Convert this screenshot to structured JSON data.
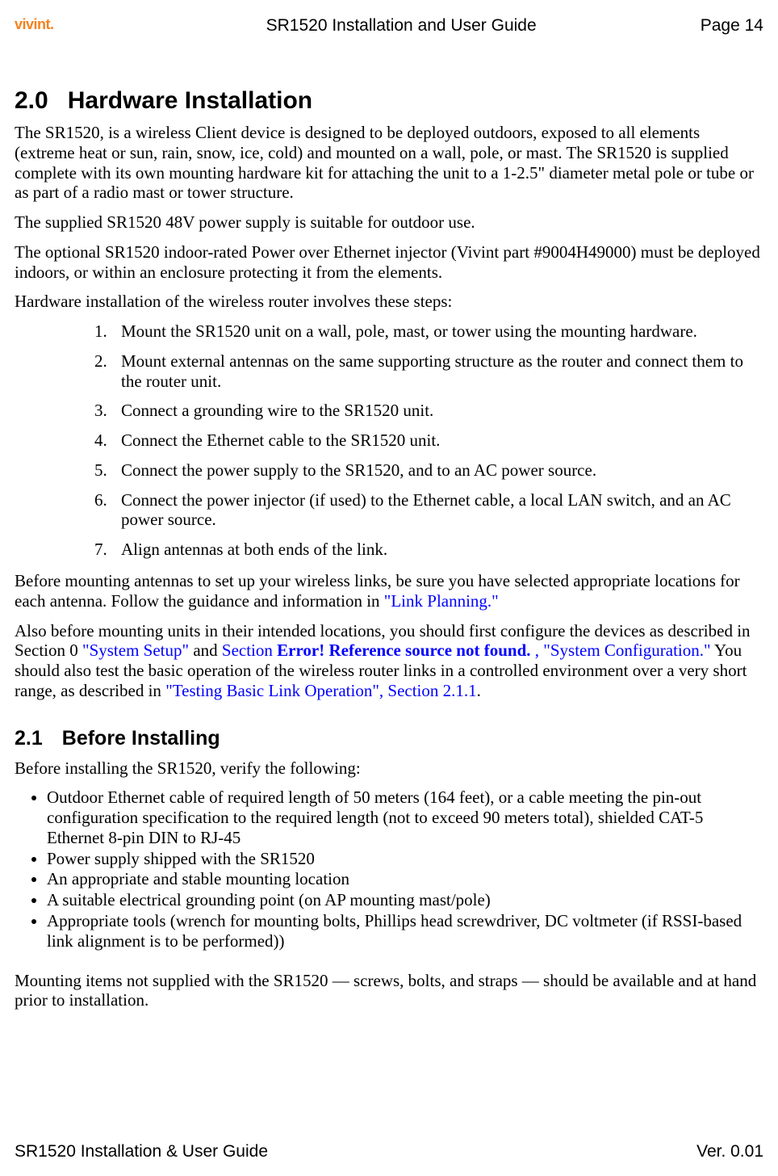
{
  "header": {
    "logo_text": "vivint",
    "logo_dot": ".",
    "doc_title": "SR1520 Installation and User Guide",
    "page_label": "Page 14"
  },
  "section": {
    "number": "2.0",
    "title": "Hardware Installation"
  },
  "intro_paras": [
    "The SR1520, is a wireless Client device is designed to be deployed outdoors, exposed to all elements (extreme heat or sun, rain, snow, ice, cold) and mounted on a wall, pole, or mast. The SR1520 is supplied complete with its own mounting hardware kit for attaching the unit to a 1-2.5\" diameter metal pole or tube or as part of a radio mast or tower structure.",
    "The supplied SR1520 48V power supply is suitable for outdoor use.",
    "The optional SR1520 indoor-rated Power over Ethernet injector (Vivint part #9004H49000) must be deployed indoors, or within an enclosure protecting it from the elements.",
    "Hardware installation of the wireless router involves these steps:"
  ],
  "steps": [
    "Mount the SR1520 unit on a wall, pole, mast, or tower using the mounting hardware.",
    "Mount external antennas on the same supporting structure as the router and connect them to the router unit.",
    "Connect a grounding wire to the SR1520 unit.",
    "Connect the Ethernet cable to the SR1520 unit.",
    "Connect the power supply to the SR1520, and to an AC power source.",
    "Connect the power injector (if used) to the Ethernet cable, a local LAN switch, and an AC power source.",
    "Align antennas at both ends of the link."
  ],
  "before_mount_p1_a": "Before mounting antennas to set up your wireless links, be sure you have selected appropriate locations for each antenna. Follow the guidance and information in ",
  "before_mount_p1_link": "\"Link Planning.\"",
  "before_mount_p2_a": "Also before mounting units in their intended locations, you should first configure the devices as described in Section 0 ",
  "before_mount_p2_link1": "\"System Setup\"",
  "before_mount_p2_b": " and ",
  "before_mount_p2_link2a": "Section ",
  "before_mount_p2_err": "Error! Reference source not found. ",
  "before_mount_p2_link2b": ", \"System Configuration.\"",
  "before_mount_p2_c": " You should also test the basic operation of the wireless router links in a controlled environment over a very short range, as described in ",
  "before_mount_p2_link3": "\"Testing Basic Link Operation\", Section 2.1.1",
  "before_mount_p2_d": ".",
  "subsection": {
    "number": "2.1",
    "title": "Before Installing"
  },
  "before_install_intro": "Before installing the SR1520, verify the following:",
  "bullets": [
    "Outdoor Ethernet cable of required length of 50 meters (164 feet), or a cable meeting the pin-out configuration specification to the required length (not to exceed 90 meters total), shielded CAT-5 Ethernet 8-pin DIN to RJ-45",
    " Power supply shipped with the SR1520",
    "An appropriate and stable mounting location",
    "A suitable electrical grounding point (on AP mounting mast/pole)",
    "Appropriate tools (wrench for mounting bolts, Phillips head screwdriver, DC voltmeter (if RSSI-based link alignment is to be performed))"
  ],
  "closing_para": "Mounting items not supplied with the SR1520 — screws, bolts, and straps — should be available and at hand prior to installation.",
  "footer": {
    "left": "SR1520 Installation & User Guide",
    "right": "Ver. 0.01"
  },
  "colors": {
    "link": "#0000ff",
    "logo": "#f58220",
    "text": "#000000",
    "background": "#ffffff"
  },
  "typography": {
    "body_font": "Times New Roman",
    "heading_font": "Arial",
    "body_size_pt": 16,
    "h1_size_pt": 22,
    "h2_size_pt": 19
  }
}
